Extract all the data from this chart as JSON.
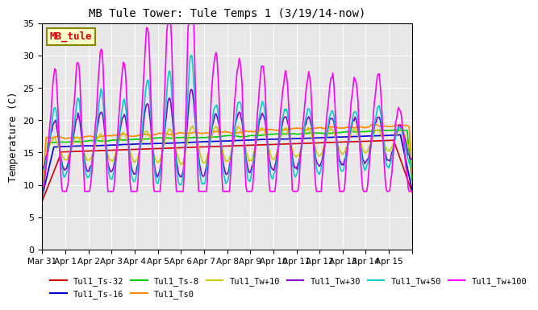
{
  "title": "MB Tule Tower: Tule Temps 1 (3/19/14-now)",
  "ylabel": "Temperature (C)",
  "ylim": [
    0,
    35
  ],
  "yticks": [
    0,
    5,
    10,
    15,
    20,
    25,
    30,
    35
  ],
  "background_color": "#e8e8e8",
  "series_names": [
    "Tul1_Ts-32",
    "Tul1_Ts-16",
    "Tul1_Ts-8",
    "Tul1_Ts0",
    "Tul1_Tw+10",
    "Tul1_Tw+30",
    "Tul1_Tw+50",
    "Tul1_Tw+100"
  ],
  "series_colors": [
    "#cc0000",
    "#0000cc",
    "#00cc00",
    "#ff8800",
    "#cccc00",
    "#8800cc",
    "#00cccc",
    "#ff00ff"
  ],
  "legend_label": "MB_tule",
  "legend_box_color": "#ffffcc",
  "legend_box_edge": "#888800",
  "legend_text_color": "#cc0000",
  "xtick_labels": [
    "Mar 31",
    "Apr 1",
    "Apr 2",
    "Apr 3",
    "Apr 4",
    "Apr 5",
    "Apr 6",
    "Apr 7",
    "Apr 8",
    "Apr 9",
    "Apr 10",
    "Apr 11",
    "Apr 12",
    "Apr 13",
    "Apr 14",
    "Apr 15"
  ],
  "n_days": 16
}
